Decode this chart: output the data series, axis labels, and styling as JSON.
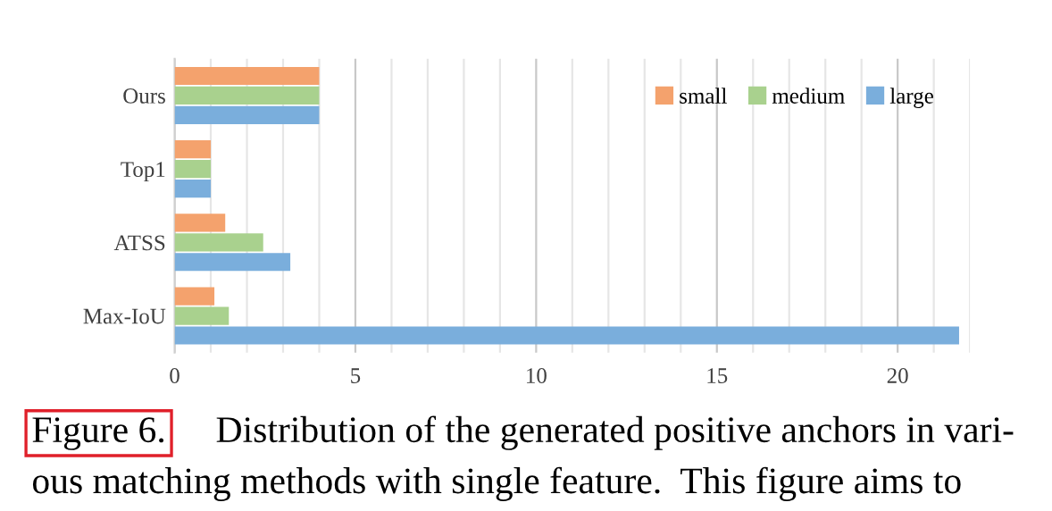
{
  "chart_data": {
    "type": "bar",
    "orientation": "horizontal",
    "categories": [
      "Ours",
      "Top1",
      "ATSS",
      "Max-IoU"
    ],
    "series": [
      {
        "name": "small",
        "color": "#f4a26d",
        "values": [
          4.0,
          1.0,
          1.4,
          1.1
        ]
      },
      {
        "name": "medium",
        "color": "#a9d18e",
        "values": [
          4.0,
          1.0,
          2.45,
          1.5
        ]
      },
      {
        "name": "large",
        "color": "#7aaedc",
        "values": [
          4.0,
          1.0,
          3.2,
          21.7
        ]
      }
    ],
    "xlim": [
      0,
      22
    ],
    "xticks": [
      0,
      {
        "value": 1,
        "label": null
      },
      {
        "value": 2,
        "label": null
      },
      {
        "value": 3,
        "label": null
      },
      {
        "value": 4,
        "label": null
      },
      5,
      {
        "value": 6,
        "label": null
      },
      {
        "value": 7,
        "label": null
      },
      {
        "value": 8,
        "label": null
      },
      {
        "value": 9,
        "label": null
      },
      10,
      {
        "value": 11,
        "label": null
      },
      {
        "value": 12,
        "label": null
      },
      {
        "value": 13,
        "label": null
      },
      {
        "value": 14,
        "label": null
      },
      15,
      {
        "value": 16,
        "label": null
      },
      {
        "value": 17,
        "label": null
      },
      {
        "value": 18,
        "label": null
      },
      {
        "value": 19,
        "label": null
      },
      20,
      {
        "value": 21,
        "label": null
      },
      {
        "value": 22,
        "label": null
      }
    ],
    "grid": "x",
    "legend": "top right",
    "annotations": [
      "Figure 6.",
      "Distribution of the generated positive anchors in vari-",
      "ous matching methods with single feature.  This figure aims to"
    ]
  }
}
